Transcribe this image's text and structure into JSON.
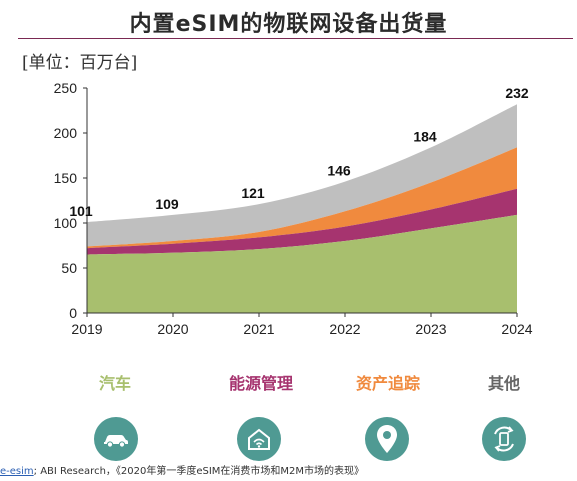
{
  "title": "内置eSIM的物联网设备出货量",
  "unit_label": "[单位：百万台]",
  "legend": [
    {
      "label": "汽车",
      "color": "#a8bf6e",
      "icon": "car-icon"
    },
    {
      "label": "能源管理",
      "color": "#a6346f",
      "icon": "smart-home-icon"
    },
    {
      "label": "资产追踪",
      "color": "#f08a3e",
      "icon": "location-pin-icon"
    },
    {
      "label": "其他",
      "color": "#666666",
      "icon": "device-rotate-icon"
    }
  ],
  "source": {
    "link_text": "e-esim",
    "text": "; ABI Research，《2020年第一季度eSIM在消费市场和M2M市场的表现》"
  },
  "chart_data": {
    "type": "area",
    "stacked": true,
    "x": [
      2019,
      2020,
      2021,
      2022,
      2023,
      2024
    ],
    "ylim": [
      0,
      250
    ],
    "yticks": [
      0,
      50,
      100,
      150,
      200,
      250
    ],
    "series": [
      {
        "name": "汽车",
        "color": "#a8bf6e",
        "values": [
          65,
          67,
          71,
          80,
          94,
          109
        ]
      },
      {
        "name": "能源管理",
        "color": "#a6346f",
        "values": [
          7,
          10,
          13,
          16,
          21,
          29
        ]
      },
      {
        "name": "资产追踪",
        "color": "#f08a3e",
        "values": [
          2,
          3,
          6,
          17,
          30,
          46
        ]
      },
      {
        "name": "其他",
        "color": "#bfbfbf",
        "values": [
          27,
          29,
          31,
          33,
          39,
          48
        ]
      }
    ],
    "totals": [
      101,
      109,
      121,
      146,
      184,
      232
    ]
  }
}
